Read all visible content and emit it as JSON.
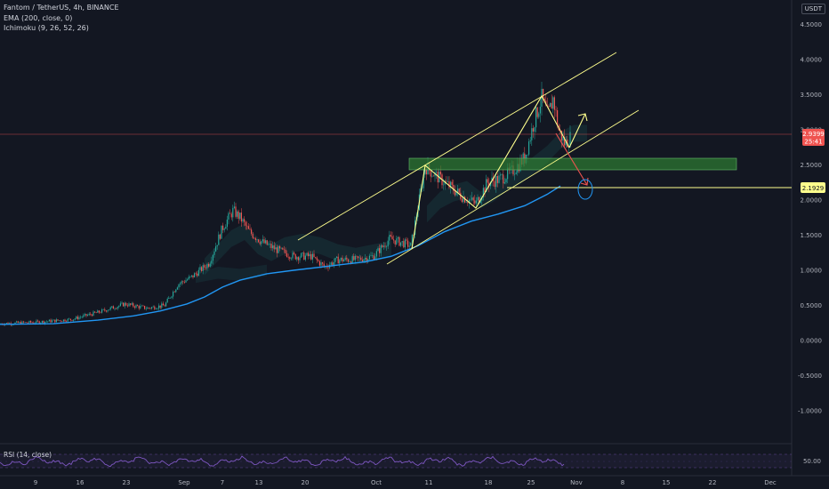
{
  "legend": {
    "symbol": "Fantom / TetherUS, 4h, BINANCE",
    "ema": "EMA (200, close, 0)",
    "ichimoku": "Ichimoku (9, 26, 52, 26)"
  },
  "price_axis": {
    "unit": "USDT",
    "ticks": [
      "4.5000",
      "4.0000",
      "3.5000",
      "3.0000",
      "2.5000",
      "2.0000",
      "1.5000",
      "1.0000",
      "0.5000",
      "0.0000",
      "-0.5000",
      "-1.0000"
    ],
    "current_price": "2.9399",
    "countdown": "25:41",
    "marked_level": "2.1929"
  },
  "time_axis": {
    "ticks": [
      "9",
      "16",
      "23",
      "Sep",
      "7",
      "13",
      "20",
      "Oct",
      "11",
      "18",
      "25",
      "Nov",
      "8",
      "15",
      "22",
      "Dec"
    ]
  },
  "rsi": {
    "label": "RSI (14, close)",
    "level": "50.00"
  },
  "colors": {
    "background": "#131722",
    "candle_up": "#26a69a",
    "candle_down": "#ef5350",
    "ema": "#2196f3",
    "annotation": "#ffff8d",
    "zone": "#2e7d32",
    "rsi": "#7e57c2",
    "price_line": "#ef5350"
  }
}
